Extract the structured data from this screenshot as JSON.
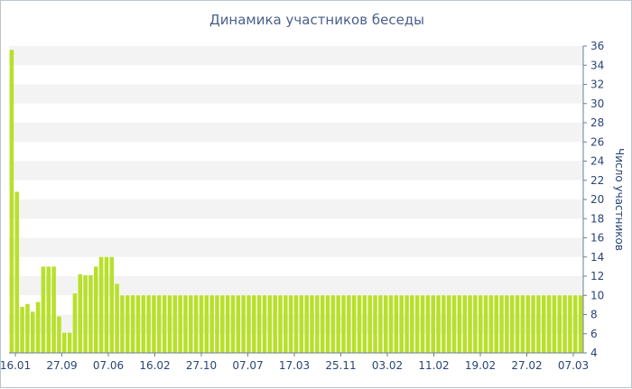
{
  "chart_data": {
    "type": "bar",
    "title": "Динамика участников беседы",
    "ylabel": "Число участников",
    "xlabel": "",
    "ylim": [
      4,
      36
    ],
    "y_ticks": [
      4,
      6,
      8,
      10,
      12,
      14,
      16,
      18,
      20,
      22,
      24,
      26,
      28,
      30,
      32,
      34,
      36
    ],
    "x_tick_labels": [
      "16.01",
      "27.09",
      "07.06",
      "16.02",
      "27.10",
      "07.07",
      "17.03",
      "25.11",
      "03.02",
      "11.02",
      "19.02",
      "27.02",
      "07.03"
    ],
    "y_axis_position": "right",
    "grid": "alternating horizontal bands",
    "bar_color": "#b8e02b",
    "values": [
      35.6,
      20.8,
      8.8,
      9.1,
      8.3,
      9.3,
      13,
      13,
      13,
      7.8,
      6.1,
      6.1,
      10.2,
      12.2,
      12.1,
      12.1,
      13,
      14,
      14,
      14,
      11.2,
      10,
      10,
      10,
      10,
      10,
      10,
      10,
      10,
      10,
      10,
      10,
      10,
      10,
      10,
      10,
      10,
      10,
      10,
      10,
      10,
      10,
      10,
      10,
      10,
      10,
      10,
      10,
      10,
      10,
      10,
      10,
      10,
      10,
      10,
      10,
      10,
      10,
      10,
      10,
      10,
      10,
      10,
      10,
      10,
      10,
      10,
      10,
      10,
      10,
      10,
      10,
      10,
      10,
      10,
      10,
      10,
      10,
      10,
      10,
      10,
      10,
      10,
      10,
      10,
      10,
      10,
      10,
      10,
      10,
      10,
      10,
      10,
      10,
      10,
      10,
      10,
      10,
      10,
      10,
      10,
      10,
      10,
      10,
      10,
      10,
      10,
      10,
      10
    ]
  }
}
